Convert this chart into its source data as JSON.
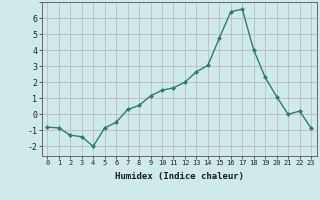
{
  "x": [
    0,
    1,
    2,
    3,
    4,
    5,
    6,
    7,
    8,
    9,
    10,
    11,
    12,
    13,
    14,
    15,
    16,
    17,
    18,
    19,
    20,
    21,
    22,
    23
  ],
  "y": [
    -0.8,
    -0.85,
    -1.3,
    -1.4,
    -2.0,
    -0.85,
    -0.5,
    0.3,
    0.55,
    1.15,
    1.5,
    1.65,
    2.0,
    2.65,
    3.05,
    4.75,
    6.4,
    6.55,
    4.0,
    2.3,
    1.1,
    0.0,
    0.2,
    -0.85
  ],
  "x_ticks": [
    0,
    1,
    2,
    3,
    4,
    5,
    6,
    7,
    8,
    9,
    10,
    11,
    12,
    13,
    14,
    15,
    16,
    17,
    18,
    19,
    20,
    21,
    22,
    23
  ],
  "x_tick_labels": [
    "0",
    "1",
    "2",
    "3",
    "4",
    "5",
    "6",
    "7",
    "8",
    "9",
    "10",
    "11",
    "12",
    "13",
    "14",
    "15",
    "16",
    "17",
    "18",
    "19",
    "20",
    "21",
    "22",
    "23"
  ],
  "y_ticks": [
    -2,
    -1,
    0,
    1,
    2,
    3,
    4,
    5,
    6
  ],
  "xlabel": "Humidex (Indice chaleur)",
  "line_color": "#2e7d6e",
  "marker": "D",
  "marker_size": 2.0,
  "bg_color": "#ceeaea",
  "grid_minor_color": "#b8d8d8",
  "grid_major_color": "#c8b8b8",
  "ylim": [
    -2.6,
    7.0
  ],
  "xlim": [
    -0.5,
    23.5
  ]
}
